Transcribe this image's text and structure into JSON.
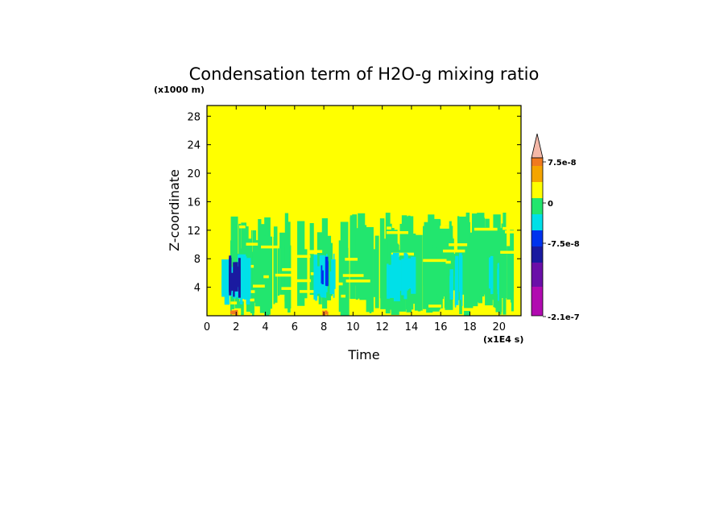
{
  "chart_data": {
    "type": "heatmap",
    "title": "Condensation term of H2O-g mixing ratio",
    "xlabel": "Time",
    "ylabel": "Z-coordinate",
    "x_unit": "(x1E4 s)",
    "y_unit": "(x1000 m)",
    "xlim": [
      0,
      21.5
    ],
    "ylim": [
      0,
      29.5
    ],
    "x_ticks": [
      0,
      2,
      4,
      6,
      8,
      10,
      12,
      14,
      16,
      18,
      20
    ],
    "y_ticks": [
      4,
      8,
      12,
      16,
      20,
      24,
      28
    ],
    "colorbar": {
      "tick_labels": [
        "7.5e-8",
        "0",
        "-7.5e-8",
        "-2.1e-7"
      ],
      "levels_top_to_bottom": [
        {
          "color": "#f4b8a8",
          "label": "overflow"
        },
        {
          "color": "#f07a20"
        },
        {
          "color": "#f5a500"
        },
        {
          "color": "#ffff00"
        },
        {
          "color": "#22e66e"
        },
        {
          "color": "#00e0e8"
        },
        {
          "color": "#0033ee"
        },
        {
          "color": "#1a1aa0"
        },
        {
          "color": "#6a0fa8"
        },
        {
          "color": "#b10ab0"
        }
      ]
    },
    "background_color": "#ffff00",
    "features": [
      {
        "region": "convective band (green)",
        "x_range": [
          1.6,
          21
        ],
        "z_range": [
          0,
          14.5
        ],
        "color": "#22e66e"
      },
      {
        "region": "cyan cell",
        "x_range": [
          1.0,
          3.0
        ],
        "z_range": [
          1.5,
          9
        ],
        "color": "#00e0e8"
      },
      {
        "region": "blue core",
        "x_range": [
          1.5,
          2.5
        ],
        "z_range": [
          2.5,
          8.5
        ],
        "color": "#1a1aa0"
      },
      {
        "region": "cyan cell",
        "x_range": [
          7.3,
          8.8
        ],
        "z_range": [
          2,
          9
        ],
        "color": "#00e0e8"
      },
      {
        "region": "blue core",
        "x_range": [
          7.8,
          8.4
        ],
        "z_range": [
          3,
          8.5
        ],
        "color": "#0033ee"
      },
      {
        "region": "cyan cell",
        "x_range": [
          12.3,
          14.3
        ],
        "z_range": [
          2,
          9
        ],
        "color": "#00e0e8"
      },
      {
        "region": "cyan cell",
        "x_range": [
          16.6,
          17.5
        ],
        "z_range": [
          1,
          9
        ],
        "color": "#00e0e8"
      },
      {
        "region": "cyan cell",
        "x_range": [
          19.2,
          20.0
        ],
        "z_range": [
          2,
          9
        ],
        "color": "#00e0e8"
      },
      {
        "region": "positive spot",
        "x_range": [
          1.6,
          2.4
        ],
        "z_range": [
          0,
          1
        ],
        "color": "#f07a20"
      },
      {
        "region": "positive spot",
        "x_range": [
          7.9,
          8.3
        ],
        "z_range": [
          0,
          0.8
        ],
        "color": "#f07a20"
      }
    ]
  }
}
